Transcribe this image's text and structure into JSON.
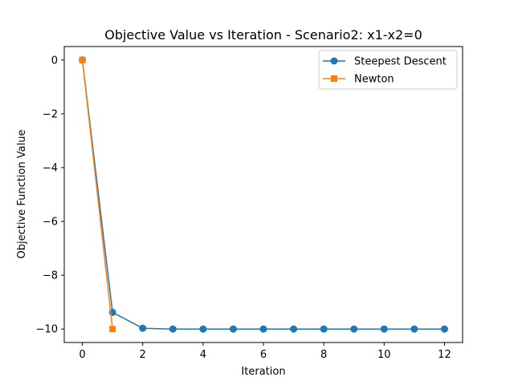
{
  "chart_data": {
    "type": "line",
    "title": "Objective Value vs Iteration - Scenario2: x1-x2=0",
    "xlabel": "Iteration",
    "ylabel": "Objective Function Value",
    "xlim": [
      -0.6,
      12.6
    ],
    "ylim": [
      -10.5,
      0.5
    ],
    "xticks": [
      0,
      2,
      4,
      6,
      8,
      10,
      12
    ],
    "xtick_labels": [
      "0",
      "2",
      "4",
      "6",
      "8",
      "10",
      "12"
    ],
    "yticks": [
      0,
      -2,
      -4,
      -6,
      -8,
      -10
    ],
    "ytick_labels": [
      "0",
      "−2",
      "−4",
      "−6",
      "−8",
      "−10"
    ],
    "grid": false,
    "legend_position": "top-right",
    "series": [
      {
        "name": "Steepest Descent",
        "color": "#1f77b4",
        "marker": "circle",
        "x": [
          0,
          1,
          2,
          3,
          4,
          5,
          6,
          7,
          8,
          9,
          10,
          11,
          12
        ],
        "y": [
          0,
          -9.38,
          -9.97,
          -10.0,
          -10.0,
          -10.0,
          -10.0,
          -10.0,
          -10.0,
          -10.0,
          -10.0,
          -10.0,
          -10.0
        ]
      },
      {
        "name": "Newton",
        "color": "#ff7f0e",
        "marker": "square",
        "x": [
          0,
          1
        ],
        "y": [
          0,
          -10.0
        ]
      }
    ]
  }
}
